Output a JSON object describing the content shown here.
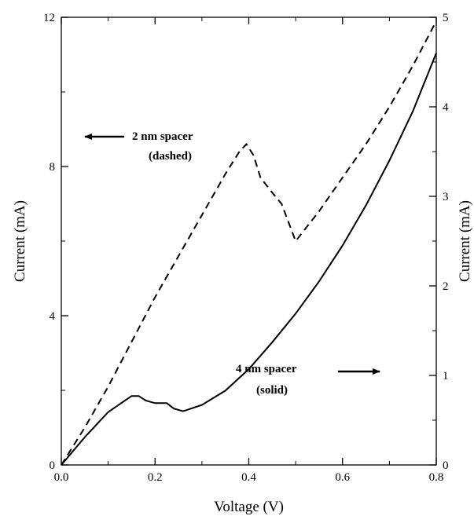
{
  "chart_data": {
    "type": "line",
    "xlabel": "Voltage (V)",
    "ylabel_left": "Current (mA)",
    "ylabel_right": "Current (mA)",
    "xlim": [
      0.0,
      0.8
    ],
    "ylim_left": [
      0,
      12
    ],
    "ylim_right": [
      0,
      5
    ],
    "x_ticks": [
      "0.0",
      "0.2",
      "0.4",
      "0.6",
      "0.8"
    ],
    "y_left_ticks": [
      "0",
      "4",
      "8",
      "12"
    ],
    "y_right_ticks": [
      "0",
      "1",
      "2",
      "3",
      "4",
      "5"
    ],
    "grid": false,
    "series": [
      {
        "name": "2 nm spacer",
        "style": "dashed",
        "axis": "left",
        "x": [
          0.0,
          0.05,
          0.1,
          0.15,
          0.2,
          0.25,
          0.3,
          0.35,
          0.38,
          0.395,
          0.41,
          0.425,
          0.45,
          0.47,
          0.5,
          0.55,
          0.6,
          0.65,
          0.7,
          0.75,
          0.8
        ],
        "values": [
          0.0,
          1.0,
          2.1,
          3.3,
          4.5,
          5.6,
          6.7,
          7.8,
          8.4,
          8.6,
          8.3,
          7.7,
          7.3,
          7.0,
          6.0,
          6.8,
          7.7,
          8.6,
          9.6,
          10.7,
          11.9
        ]
      },
      {
        "name": "4 nm spacer",
        "style": "solid",
        "axis": "right",
        "x": [
          0.0,
          0.05,
          0.1,
          0.15,
          0.165,
          0.18,
          0.2,
          0.225,
          0.24,
          0.26,
          0.3,
          0.35,
          0.4,
          0.45,
          0.5,
          0.55,
          0.6,
          0.65,
          0.7,
          0.75,
          0.8
        ],
        "values": [
          0.0,
          0.31,
          0.59,
          0.77,
          0.77,
          0.72,
          0.69,
          0.69,
          0.63,
          0.6,
          0.67,
          0.83,
          1.07,
          1.37,
          1.69,
          2.05,
          2.45,
          2.9,
          3.4,
          3.95,
          4.6
        ]
      }
    ],
    "annotations": [
      {
        "line1": "2 nm spacer",
        "line2": "(dashed)",
        "arrow": "left"
      },
      {
        "line1": "4 nm spacer",
        "line2": "(solid)",
        "arrow": "right"
      }
    ]
  }
}
